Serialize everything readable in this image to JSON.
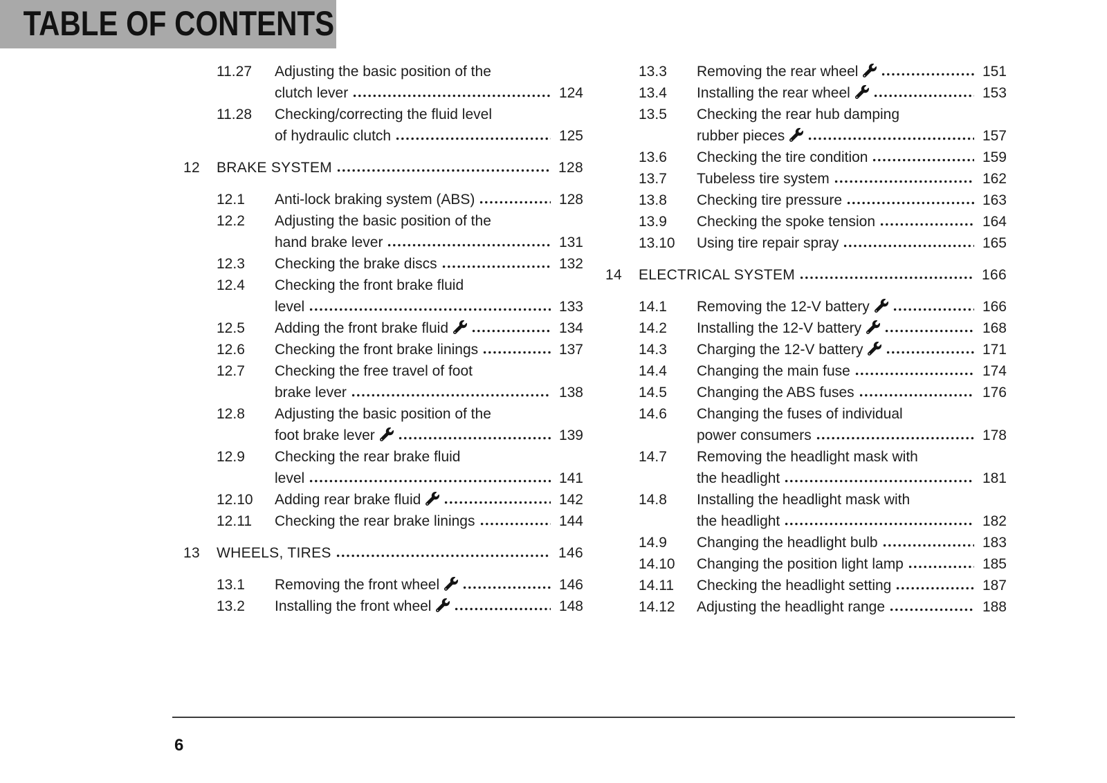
{
  "header": {
    "title": "TABLE OF CONTENTS"
  },
  "footer": {
    "page_number": "6"
  },
  "icons": {
    "wrench": "wrench-icon"
  },
  "colors": {
    "header_bg": "#a9a9a9",
    "text": "#1d1d1d",
    "rule": "#3c3c3c"
  },
  "columns": [
    {
      "entries": [
        {
          "type": "section",
          "num": "11.27",
          "lines": [
            "Adjusting the basic position of the",
            "clutch lever"
          ],
          "page": "124",
          "wrench": false
        },
        {
          "type": "section",
          "num": "11.28",
          "lines": [
            "Checking/correcting the fluid level",
            "of hydraulic clutch"
          ],
          "page": "125",
          "wrench": false
        },
        {
          "type": "chapter",
          "num": "12",
          "lines": [
            "BRAKE SYSTEM"
          ],
          "page": "128",
          "wrench": false
        },
        {
          "type": "section",
          "num": "12.1",
          "lines": [
            "Anti-lock braking system (ABS)"
          ],
          "page": "128",
          "wrench": false
        },
        {
          "type": "section",
          "num": "12.2",
          "lines": [
            "Adjusting the basic position of the",
            "hand brake lever"
          ],
          "page": "131",
          "wrench": false
        },
        {
          "type": "section",
          "num": "12.3",
          "lines": [
            "Checking the brake discs"
          ],
          "page": "132",
          "wrench": false
        },
        {
          "type": "section",
          "num": "12.4",
          "lines": [
            "Checking the front brake fluid",
            "level"
          ],
          "page": "133",
          "wrench": false
        },
        {
          "type": "section",
          "num": "12.5",
          "lines": [
            "Adding the front brake fluid"
          ],
          "page": "134",
          "wrench": true
        },
        {
          "type": "section",
          "num": "12.6",
          "lines": [
            "Checking the front brake linings"
          ],
          "page": "137",
          "wrench": false
        },
        {
          "type": "section",
          "num": "12.7",
          "lines": [
            "Checking the free travel of foot",
            "brake lever"
          ],
          "page": "138",
          "wrench": false
        },
        {
          "type": "section",
          "num": "12.8",
          "lines": [
            "Adjusting the basic position of the",
            "foot brake lever"
          ],
          "page": "139",
          "wrench": true
        },
        {
          "type": "section",
          "num": "12.9",
          "lines": [
            "Checking the rear brake fluid",
            "level"
          ],
          "page": "141",
          "wrench": false
        },
        {
          "type": "section",
          "num": "12.10",
          "lines": [
            "Adding rear brake fluid"
          ],
          "page": "142",
          "wrench": true
        },
        {
          "type": "section",
          "num": "12.11",
          "lines": [
            "Checking the rear brake linings"
          ],
          "page": "144",
          "wrench": false
        },
        {
          "type": "chapter",
          "num": "13",
          "lines": [
            "WHEELS, TIRES"
          ],
          "page": "146",
          "wrench": false
        },
        {
          "type": "section",
          "num": "13.1",
          "lines": [
            "Removing the front wheel"
          ],
          "page": "146",
          "wrench": true
        },
        {
          "type": "section",
          "num": "13.2",
          "lines": [
            "Installing the front wheel"
          ],
          "page": "148",
          "wrench": true
        }
      ]
    },
    {
      "entries": [
        {
          "type": "section",
          "num": "13.3",
          "lines": [
            "Removing the rear wheel"
          ],
          "page": "151",
          "wrench": true
        },
        {
          "type": "section",
          "num": "13.4",
          "lines": [
            "Installing the rear wheel"
          ],
          "page": "153",
          "wrench": true
        },
        {
          "type": "section",
          "num": "13.5",
          "lines": [
            "Checking the rear hub damping",
            "rubber pieces"
          ],
          "page": "157",
          "wrench": true
        },
        {
          "type": "section",
          "num": "13.6",
          "lines": [
            "Checking the tire condition"
          ],
          "page": "159",
          "wrench": false
        },
        {
          "type": "section",
          "num": "13.7",
          "lines": [
            "Tubeless tire system"
          ],
          "page": "162",
          "wrench": false
        },
        {
          "type": "section",
          "num": "13.8",
          "lines": [
            "Checking tire pressure"
          ],
          "page": "163",
          "wrench": false
        },
        {
          "type": "section",
          "num": "13.9",
          "lines": [
            "Checking the spoke tension"
          ],
          "page": "164",
          "wrench": false
        },
        {
          "type": "section",
          "num": "13.10",
          "lines": [
            "Using tire repair spray"
          ],
          "page": "165",
          "wrench": false
        },
        {
          "type": "chapter",
          "num": "14",
          "lines": [
            "ELECTRICAL SYSTEM"
          ],
          "page": "166",
          "wrench": false
        },
        {
          "type": "section",
          "num": "14.1",
          "lines": [
            "Removing the 12-V battery"
          ],
          "page": "166",
          "wrench": true
        },
        {
          "type": "section",
          "num": "14.2",
          "lines": [
            "Installing the 12-V battery"
          ],
          "page": "168",
          "wrench": true
        },
        {
          "type": "section",
          "num": "14.3",
          "lines": [
            "Charging the 12-V battery"
          ],
          "page": "171",
          "wrench": true
        },
        {
          "type": "section",
          "num": "14.4",
          "lines": [
            "Changing the main fuse"
          ],
          "page": "174",
          "wrench": false
        },
        {
          "type": "section",
          "num": "14.5",
          "lines": [
            "Changing the ABS fuses"
          ],
          "page": "176",
          "wrench": false
        },
        {
          "type": "section",
          "num": "14.6",
          "lines": [
            "Changing the fuses of individual",
            "power consumers"
          ],
          "page": "178",
          "wrench": false
        },
        {
          "type": "section",
          "num": "14.7",
          "lines": [
            "Removing the headlight mask with",
            "the headlight"
          ],
          "page": "181",
          "wrench": false
        },
        {
          "type": "section",
          "num": "14.8",
          "lines": [
            "Installing the headlight mask with",
            "the headlight"
          ],
          "page": "182",
          "wrench": false
        },
        {
          "type": "section",
          "num": "14.9",
          "lines": [
            "Changing the headlight bulb"
          ],
          "page": "183",
          "wrench": false
        },
        {
          "type": "section",
          "num": "14.10",
          "lines": [
            "Changing the position light lamp"
          ],
          "page": "185",
          "wrench": false
        },
        {
          "type": "section",
          "num": "14.11",
          "lines": [
            "Checking the headlight setting"
          ],
          "page": "187",
          "wrench": false
        },
        {
          "type": "section",
          "num": "14.12",
          "lines": [
            "Adjusting the headlight range"
          ],
          "page": "188",
          "wrench": false
        }
      ]
    }
  ]
}
